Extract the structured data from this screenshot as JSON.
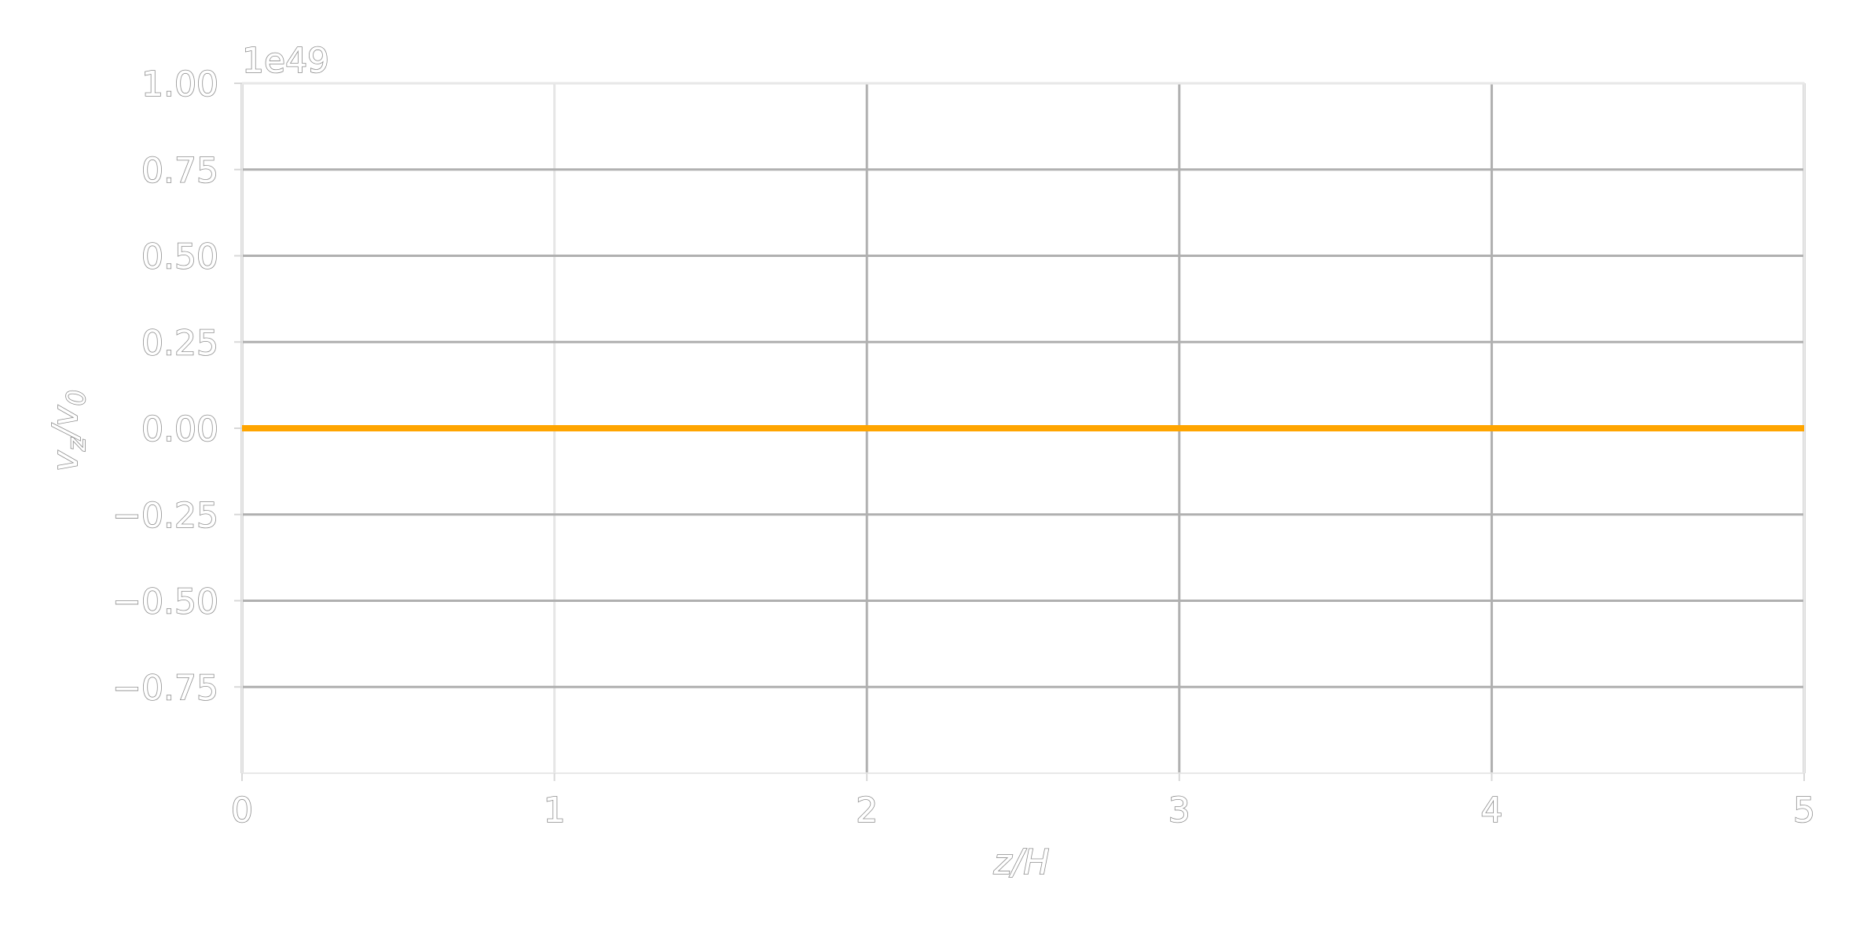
{
  "chart_data": {
    "type": "line",
    "title": "",
    "xlabel": "z/H",
    "ylabel_main": "v",
    "ylabel_sub1": "z",
    "ylabel_sep": "/v",
    "ylabel_sub2": "0",
    "y_offset_text": "1e49",
    "xlim": [
      0,
      5
    ],
    "ylim": [
      -1.0,
      1.0
    ],
    "x_ticks": [
      0,
      1,
      2,
      3,
      4,
      5
    ],
    "x_tick_labels": [
      "0",
      "1",
      "2",
      "3",
      "4",
      "5"
    ],
    "y_ticks": [
      1.0,
      0.75,
      0.5,
      0.25,
      0.0,
      -0.25,
      -0.5,
      -0.75
    ],
    "y_tick_labels": [
      "1.00",
      "0.75",
      "0.50",
      "0.25",
      "0.00",
      "−0.25",
      "−0.50",
      "−0.75"
    ],
    "grid": true,
    "series": [
      {
        "color": "#ffa500",
        "x": [
          0,
          5
        ],
        "y": [
          0,
          0
        ]
      }
    ]
  }
}
